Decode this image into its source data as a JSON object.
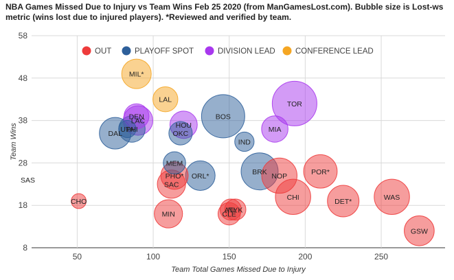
{
  "chart_data": {
    "type": "scatter",
    "title": "NBA Games Missed Due to Injury vs Team Wins Feb 25 2020 (from ManGamesLost.com). Bubble size is Lost-ws metric (wins lost due to injured players). *Reviewed and verified by team.",
    "xlabel": "Team Total Games Missed Due to Injury",
    "ylabel": "Team Wins",
    "xlim": [
      20,
      292
    ],
    "ylim": [
      8,
      58
    ],
    "xticks": [
      50,
      100,
      150,
      200,
      250
    ],
    "yticks": [
      8,
      18,
      28,
      38,
      48,
      58
    ],
    "grid": true,
    "legend_position": "top",
    "series": [
      {
        "name": "OUT",
        "color": "#ee3b3b"
      },
      {
        "name": "PLAYOFF SPOT",
        "color": "#2d5f9a"
      },
      {
        "name": "DIVISION LEAD",
        "color": "#a838ee"
      },
      {
        "name": "CONFERENCE LEAD",
        "color": "#f5a623"
      }
    ],
    "points": [
      {
        "label": "SAS",
        "x": 20,
        "y": 24,
        "size": 0.2,
        "series": "OUT"
      },
      {
        "label": "CHO",
        "x": 51,
        "y": 19,
        "size": 0.9,
        "series": "OUT"
      },
      {
        "label": "MIN",
        "x": 110,
        "y": 16,
        "size": 3.2,
        "series": "OUT"
      },
      {
        "label": "PHO*",
        "x": 114,
        "y": 25,
        "size": 3.0,
        "series": "OUT"
      },
      {
        "label": "SAC",
        "x": 112,
        "y": 23,
        "size": 3.2,
        "series": "OUT"
      },
      {
        "label": "CLE",
        "x": 150,
        "y": 16,
        "size": 2.0,
        "series": "OUT"
      },
      {
        "label": "ATL",
        "x": 151,
        "y": 17,
        "size": 1.8,
        "series": "OUT"
      },
      {
        "label": "NYK",
        "x": 154,
        "y": 17,
        "size": 1.8,
        "series": "OUT"
      },
      {
        "label": "NOP",
        "x": 183,
        "y": 25,
        "size": 5.0,
        "series": "OUT"
      },
      {
        "label": "CHI",
        "x": 192,
        "y": 20,
        "size": 5.0,
        "series": "OUT"
      },
      {
        "label": "POR*",
        "x": 210,
        "y": 26,
        "size": 4.5,
        "series": "OUT"
      },
      {
        "label": "DET*",
        "x": 225,
        "y": 19,
        "size": 4.0,
        "series": "OUT"
      },
      {
        "label": "WAS",
        "x": 257,
        "y": 20,
        "size": 5.0,
        "series": "OUT"
      },
      {
        "label": "GSW",
        "x": 275,
        "y": 12,
        "size": 3.6,
        "series": "OUT"
      },
      {
        "label": "DAL",
        "x": 75,
        "y": 35,
        "size": 4.0,
        "series": "PLAYOFF SPOT"
      },
      {
        "label": "UTA",
        "x": 83,
        "y": 36,
        "size": 1.2,
        "series": "PLAYOFF SPOT"
      },
      {
        "label": "PHI",
        "x": 86,
        "y": 36,
        "size": 2.8,
        "series": "PLAYOFF SPOT"
      },
      {
        "label": "MEM",
        "x": 114,
        "y": 28,
        "size": 2.0,
        "series": "PLAYOFF SPOT"
      },
      {
        "label": "ORL*",
        "x": 131,
        "y": 25,
        "size": 3.5,
        "series": "PLAYOFF SPOT"
      },
      {
        "label": "OKC",
        "x": 118,
        "y": 35,
        "size": 2.2,
        "series": "PLAYOFF SPOT"
      },
      {
        "label": "BOS",
        "x": 146,
        "y": 39,
        "size": 7.5,
        "series": "PLAYOFF SPOT"
      },
      {
        "label": "IND",
        "x": 160,
        "y": 33,
        "size": 1.5,
        "series": "PLAYOFF SPOT"
      },
      {
        "label": "BRK",
        "x": 170,
        "y": 26,
        "size": 5.5,
        "series": "PLAYOFF SPOT"
      },
      {
        "label": "DEN",
        "x": 89,
        "y": 39,
        "size": 2.5,
        "series": "DIVISION LEAD"
      },
      {
        "label": "LAC",
        "x": 90,
        "y": 38,
        "size": 3.5,
        "series": "DIVISION LEAD"
      },
      {
        "label": "HOU",
        "x": 120,
        "y": 37,
        "size": 3.0,
        "series": "DIVISION LEAD"
      },
      {
        "label": "MIA",
        "x": 180,
        "y": 36,
        "size": 2.8,
        "series": "DIVISION LEAD"
      },
      {
        "label": "TOR",
        "x": 193,
        "y": 42,
        "size": 8.0,
        "series": "DIVISION LEAD"
      },
      {
        "label": "MIL*",
        "x": 89,
        "y": 49,
        "size": 3.5,
        "series": "CONFERENCE LEAD"
      },
      {
        "label": "LAL",
        "x": 108,
        "y": 43,
        "size": 2.5,
        "series": "CONFERENCE LEAD"
      }
    ]
  }
}
